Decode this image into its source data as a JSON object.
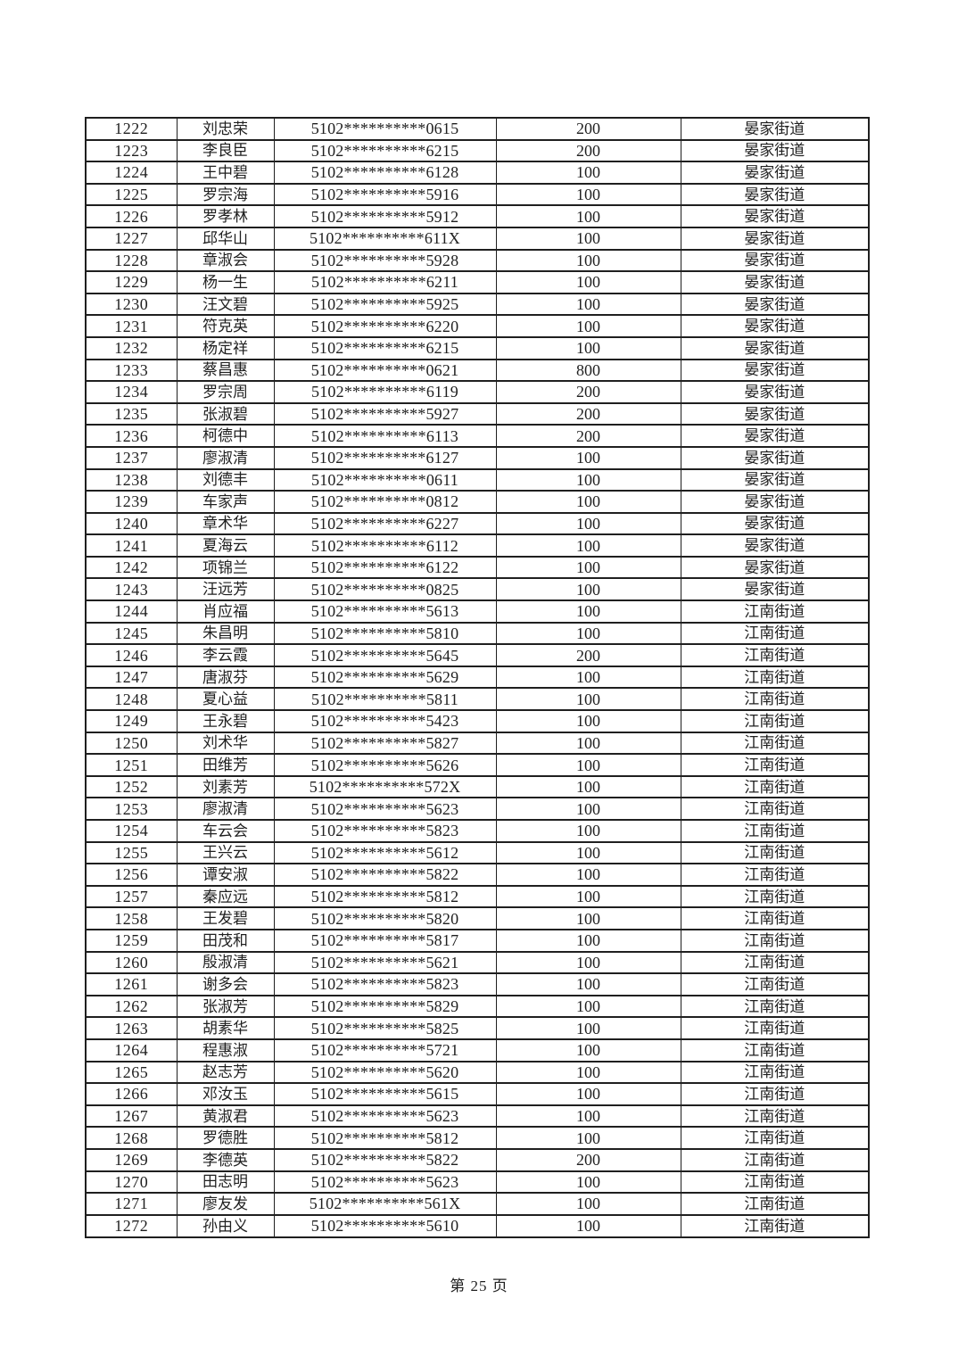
{
  "page": {
    "footer": "第 25 页"
  },
  "colors": {
    "background": "#ffffff",
    "text": "#1f1f1f",
    "border": "#1f1f1f"
  },
  "table": {
    "column_semantics": [
      "row-number",
      "person-name",
      "masked-id-number",
      "amount",
      "district"
    ],
    "rows": [
      [
        "1222",
        "刘忠荣",
        "5102**********0615",
        "200",
        "晏家街道"
      ],
      [
        "1223",
        "李良臣",
        "5102**********6215",
        "200",
        "晏家街道"
      ],
      [
        "1224",
        "王中碧",
        "5102**********6128",
        "100",
        "晏家街道"
      ],
      [
        "1225",
        "罗宗海",
        "5102**********5916",
        "100",
        "晏家街道"
      ],
      [
        "1226",
        "罗孝林",
        "5102**********5912",
        "100",
        "晏家街道"
      ],
      [
        "1227",
        "邱华山",
        "5102**********611X",
        "100",
        "晏家街道"
      ],
      [
        "1228",
        "章淑会",
        "5102**********5928",
        "100",
        "晏家街道"
      ],
      [
        "1229",
        "杨一生",
        "5102**********6211",
        "100",
        "晏家街道"
      ],
      [
        "1230",
        "汪文碧",
        "5102**********5925",
        "100",
        "晏家街道"
      ],
      [
        "1231",
        "符克英",
        "5102**********6220",
        "100",
        "晏家街道"
      ],
      [
        "1232",
        "杨定祥",
        "5102**********6215",
        "100",
        "晏家街道"
      ],
      [
        "1233",
        "蔡昌惠",
        "5102**********0621",
        "800",
        "晏家街道"
      ],
      [
        "1234",
        "罗宗周",
        "5102**********6119",
        "200",
        "晏家街道"
      ],
      [
        "1235",
        "张淑碧",
        "5102**********5927",
        "200",
        "晏家街道"
      ],
      [
        "1236",
        "柯德中",
        "5102**********6113",
        "200",
        "晏家街道"
      ],
      [
        "1237",
        "廖淑清",
        "5102**********6127",
        "100",
        "晏家街道"
      ],
      [
        "1238",
        "刘德丰",
        "5102**********0611",
        "100",
        "晏家街道"
      ],
      [
        "1239",
        "车家声",
        "5102**********0812",
        "100",
        "晏家街道"
      ],
      [
        "1240",
        "章术华",
        "5102**********6227",
        "100",
        "晏家街道"
      ],
      [
        "1241",
        "夏海云",
        "5102**********6112",
        "100",
        "晏家街道"
      ],
      [
        "1242",
        "项锦兰",
        "5102**********6122",
        "100",
        "晏家街道"
      ],
      [
        "1243",
        "汪远芳",
        "5102**********0825",
        "100",
        "晏家街道"
      ],
      [
        "1244",
        "肖应福",
        "5102**********5613",
        "100",
        "江南街道"
      ],
      [
        "1245",
        "朱昌明",
        "5102**********5810",
        "100",
        "江南街道"
      ],
      [
        "1246",
        "李云霞",
        "5102**********5645",
        "200",
        "江南街道"
      ],
      [
        "1247",
        "唐淑芬",
        "5102**********5629",
        "100",
        "江南街道"
      ],
      [
        "1248",
        "夏心益",
        "5102**********5811",
        "100",
        "江南街道"
      ],
      [
        "1249",
        "王永碧",
        "5102**********5423",
        "100",
        "江南街道"
      ],
      [
        "1250",
        "刘术华",
        "5102**********5827",
        "100",
        "江南街道"
      ],
      [
        "1251",
        "田维芳",
        "5102**********5626",
        "100",
        "江南街道"
      ],
      [
        "1252",
        "刘素芳",
        "5102**********572X",
        "100",
        "江南街道"
      ],
      [
        "1253",
        "廖淑清",
        "5102**********5623",
        "100",
        "江南街道"
      ],
      [
        "1254",
        "车云会",
        "5102**********5823",
        "100",
        "江南街道"
      ],
      [
        "1255",
        "王兴云",
        "5102**********5612",
        "100",
        "江南街道"
      ],
      [
        "1256",
        "谭安淑",
        "5102**********5822",
        "100",
        "江南街道"
      ],
      [
        "1257",
        "秦应远",
        "5102**********5812",
        "100",
        "江南街道"
      ],
      [
        "1258",
        "王发碧",
        "5102**********5820",
        "100",
        "江南街道"
      ],
      [
        "1259",
        "田茂和",
        "5102**********5817",
        "100",
        "江南街道"
      ],
      [
        "1260",
        "殷淑清",
        "5102**********5621",
        "100",
        "江南街道"
      ],
      [
        "1261",
        "谢多会",
        "5102**********5823",
        "100",
        "江南街道"
      ],
      [
        "1262",
        "张淑芳",
        "5102**********5829",
        "100",
        "江南街道"
      ],
      [
        "1263",
        "胡素华",
        "5102**********5825",
        "100",
        "江南街道"
      ],
      [
        "1264",
        "程惠淑",
        "5102**********5721",
        "100",
        "江南街道"
      ],
      [
        "1265",
        "赵志芳",
        "5102**********5620",
        "100",
        "江南街道"
      ],
      [
        "1266",
        "邓汝玉",
        "5102**********5615",
        "100",
        "江南街道"
      ],
      [
        "1267",
        "黄淑君",
        "5102**********5623",
        "100",
        "江南街道"
      ],
      [
        "1268",
        "罗德胜",
        "5102**********5812",
        "100",
        "江南街道"
      ],
      [
        "1269",
        "李德英",
        "5102**********5822",
        "200",
        "江南街道"
      ],
      [
        "1270",
        "田志明",
        "5102**********5623",
        "100",
        "江南街道"
      ],
      [
        "1271",
        "廖友发",
        "5102**********561X",
        "100",
        "江南街道"
      ],
      [
        "1272",
        "孙由义",
        "5102**********5610",
        "100",
        "江南街道"
      ]
    ]
  }
}
